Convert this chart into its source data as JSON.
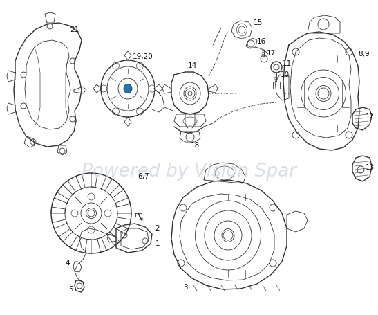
{
  "watermark": "Powered by Vision Spar",
  "watermark_color": "#c0cad4",
  "watermark_alpha": 0.6,
  "watermark_fontsize": 19,
  "background_color": "#ffffff",
  "line_color": "#303030",
  "label_color": "#111111",
  "label_fontsize": 7.5,
  "fig_width": 5.47,
  "fig_height": 4.55,
  "dpi": 100
}
